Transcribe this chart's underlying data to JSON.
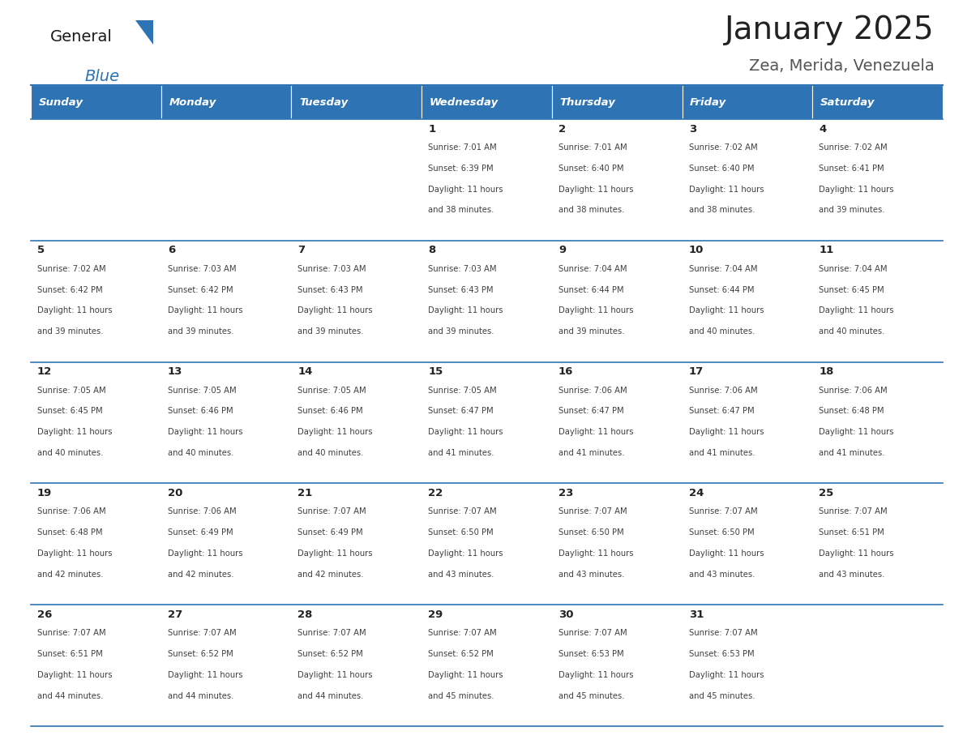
{
  "title": "January 2025",
  "subtitle": "Zea, Merida, Venezuela",
  "days_of_week": [
    "Sunday",
    "Monday",
    "Tuesday",
    "Wednesday",
    "Thursday",
    "Friday",
    "Saturday"
  ],
  "header_bg": "#2E74B5",
  "header_text_color": "#FFFFFF",
  "row_bg": "#FFFFFF",
  "row_bg_last": "#F2F2F2",
  "cell_text_color": "#404040",
  "day_num_color": "#222222",
  "border_color": "#2E74B5",
  "title_color": "#222222",
  "subtitle_color": "#555555",
  "logo_general_color": "#1a1a1a",
  "logo_blue_color": "#2E74B5",
  "calendar_data": [
    [
      {
        "day": "",
        "sunrise": "",
        "sunset": "",
        "daylight_min": ""
      },
      {
        "day": "",
        "sunrise": "",
        "sunset": "",
        "daylight_min": ""
      },
      {
        "day": "",
        "sunrise": "",
        "sunset": "",
        "daylight_min": ""
      },
      {
        "day": "1",
        "sunrise": "7:01 AM",
        "sunset": "6:39 PM",
        "daylight_min": "38"
      },
      {
        "day": "2",
        "sunrise": "7:01 AM",
        "sunset": "6:40 PM",
        "daylight_min": "38"
      },
      {
        "day": "3",
        "sunrise": "7:02 AM",
        "sunset": "6:40 PM",
        "daylight_min": "38"
      },
      {
        "day": "4",
        "sunrise": "7:02 AM",
        "sunset": "6:41 PM",
        "daylight_min": "39"
      }
    ],
    [
      {
        "day": "5",
        "sunrise": "7:02 AM",
        "sunset": "6:42 PM",
        "daylight_min": "39"
      },
      {
        "day": "6",
        "sunrise": "7:03 AM",
        "sunset": "6:42 PM",
        "daylight_min": "39"
      },
      {
        "day": "7",
        "sunrise": "7:03 AM",
        "sunset": "6:43 PM",
        "daylight_min": "39"
      },
      {
        "day": "8",
        "sunrise": "7:03 AM",
        "sunset": "6:43 PM",
        "daylight_min": "39"
      },
      {
        "day": "9",
        "sunrise": "7:04 AM",
        "sunset": "6:44 PM",
        "daylight_min": "39"
      },
      {
        "day": "10",
        "sunrise": "7:04 AM",
        "sunset": "6:44 PM",
        "daylight_min": "40"
      },
      {
        "day": "11",
        "sunrise": "7:04 AM",
        "sunset": "6:45 PM",
        "daylight_min": "40"
      }
    ],
    [
      {
        "day": "12",
        "sunrise": "7:05 AM",
        "sunset": "6:45 PM",
        "daylight_min": "40"
      },
      {
        "day": "13",
        "sunrise": "7:05 AM",
        "sunset": "6:46 PM",
        "daylight_min": "40"
      },
      {
        "day": "14",
        "sunrise": "7:05 AM",
        "sunset": "6:46 PM",
        "daylight_min": "40"
      },
      {
        "day": "15",
        "sunrise": "7:05 AM",
        "sunset": "6:47 PM",
        "daylight_min": "41"
      },
      {
        "day": "16",
        "sunrise": "7:06 AM",
        "sunset": "6:47 PM",
        "daylight_min": "41"
      },
      {
        "day": "17",
        "sunrise": "7:06 AM",
        "sunset": "6:47 PM",
        "daylight_min": "41"
      },
      {
        "day": "18",
        "sunrise": "7:06 AM",
        "sunset": "6:48 PM",
        "daylight_min": "41"
      }
    ],
    [
      {
        "day": "19",
        "sunrise": "7:06 AM",
        "sunset": "6:48 PM",
        "daylight_min": "42"
      },
      {
        "day": "20",
        "sunrise": "7:06 AM",
        "sunset": "6:49 PM",
        "daylight_min": "42"
      },
      {
        "day": "21",
        "sunrise": "7:07 AM",
        "sunset": "6:49 PM",
        "daylight_min": "42"
      },
      {
        "day": "22",
        "sunrise": "7:07 AM",
        "sunset": "6:50 PM",
        "daylight_min": "43"
      },
      {
        "day": "23",
        "sunrise": "7:07 AM",
        "sunset": "6:50 PM",
        "daylight_min": "43"
      },
      {
        "day": "24",
        "sunrise": "7:07 AM",
        "sunset": "6:50 PM",
        "daylight_min": "43"
      },
      {
        "day": "25",
        "sunrise": "7:07 AM",
        "sunset": "6:51 PM",
        "daylight_min": "43"
      }
    ],
    [
      {
        "day": "26",
        "sunrise": "7:07 AM",
        "sunset": "6:51 PM",
        "daylight_min": "44"
      },
      {
        "day": "27",
        "sunrise": "7:07 AM",
        "sunset": "6:52 PM",
        "daylight_min": "44"
      },
      {
        "day": "28",
        "sunrise": "7:07 AM",
        "sunset": "6:52 PM",
        "daylight_min": "44"
      },
      {
        "day": "29",
        "sunrise": "7:07 AM",
        "sunset": "6:52 PM",
        "daylight_min": "45"
      },
      {
        "day": "30",
        "sunrise": "7:07 AM",
        "sunset": "6:53 PM",
        "daylight_min": "45"
      },
      {
        "day": "31",
        "sunrise": "7:07 AM",
        "sunset": "6:53 PM",
        "daylight_min": "45"
      },
      {
        "day": "",
        "sunrise": "",
        "sunset": "",
        "daylight_min": ""
      }
    ]
  ],
  "fig_width": 11.88,
  "fig_height": 9.18,
  "dpi": 100
}
